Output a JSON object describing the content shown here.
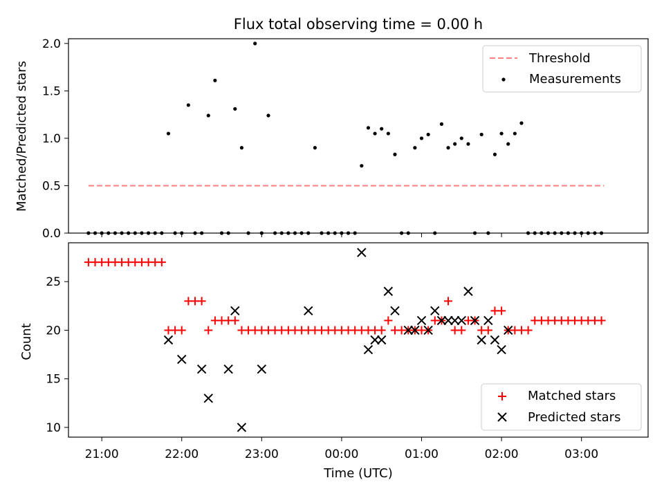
{
  "chart_data": [
    {
      "type": "scatter",
      "title": "Flux total observing time = 0.00 h",
      "xlabel": "",
      "ylabel": "Matched/Predicted stars",
      "yticks": [
        "0.0",
        "0.5",
        "1.0",
        "1.5",
        "2.0"
      ],
      "ylim": [
        0,
        2.05
      ],
      "legend": {
        "position": "top-right",
        "entries": [
          "Threshold",
          "Measurements"
        ]
      },
      "threshold": {
        "name": "Threshold",
        "y": 0.5,
        "x_start": "20:50",
        "x_end": "03:17",
        "color": "#ff7f7f",
        "style": "dashed"
      },
      "series": [
        {
          "name": "Measurements",
          "color": "#000000",
          "x": [
            "20:50",
            "20:55",
            "21:00",
            "21:05",
            "21:10",
            "21:15",
            "21:20",
            "21:25",
            "21:30",
            "21:35",
            "21:40",
            "21:45",
            "21:50",
            "21:55",
            "22:00",
            "22:05",
            "22:10",
            "22:15",
            "22:20",
            "22:25",
            "22:30",
            "22:35",
            "22:40",
            "22:45",
            "22:50",
            "22:55",
            "23:00",
            "23:05",
            "23:10",
            "23:15",
            "23:20",
            "23:25",
            "23:30",
            "23:35",
            "23:40",
            "23:45",
            "23:50",
            "23:55",
            "00:00",
            "00:05",
            "00:10",
            "00:15",
            "00:20",
            "00:25",
            "00:30",
            "00:35",
            "00:40",
            "00:45",
            "00:50",
            "00:55",
            "01:00",
            "01:05",
            "01:10",
            "01:15",
            "01:20",
            "01:25",
            "01:30",
            "01:35",
            "01:40",
            "01:45",
            "01:50",
            "01:55",
            "02:00",
            "02:05",
            "02:10",
            "02:15",
            "02:20",
            "02:25",
            "02:30",
            "02:35",
            "02:40",
            "02:45",
            "02:50",
            "02:55",
            "03:00",
            "03:05",
            "03:10",
            "03:15"
          ],
          "y": [
            0,
            0,
            0,
            0,
            0,
            0,
            0,
            0,
            0,
            0,
            0,
            0,
            1.05,
            0,
            0,
            1.35,
            0,
            0,
            1.24,
            1.61,
            0,
            0,
            1.31,
            0.9,
            0,
            2.0,
            0,
            1.24,
            0,
            0,
            0,
            0,
            0,
            0,
            0.9,
            0,
            0,
            0,
            0,
            0,
            0,
            0.71,
            1.11,
            1.05,
            1.1,
            1.05,
            0.83,
            0,
            0,
            0.9,
            1.0,
            1.04,
            0,
            1.15,
            0.9,
            0.94,
            1.0,
            0.94,
            0,
            1.04,
            0,
            0.83,
            1.05,
            0.94,
            1.05,
            1.16,
            0,
            0,
            0,
            0,
            0,
            0,
            0,
            0,
            0,
            0,
            0,
            0
          ]
        }
      ]
    },
    {
      "type": "scatter",
      "xlabel": "Time (UTC)",
      "ylabel": "Count",
      "yticks": [
        "10",
        "15",
        "20",
        "25"
      ],
      "ylim": [
        9,
        29
      ],
      "xticks": [
        "21:00",
        "22:00",
        "23:00",
        "00:00",
        "01:00",
        "02:00",
        "03:00"
      ],
      "xlim": [
        "20:35",
        "03:50"
      ],
      "legend": {
        "position": "bottom-right",
        "entries": [
          "Matched stars",
          "Predicted stars"
        ]
      },
      "series": [
        {
          "name": "Matched stars",
          "color": "#ff0000",
          "marker": "plus",
          "x": [
            "20:50",
            "20:55",
            "21:00",
            "21:05",
            "21:10",
            "21:15",
            "21:20",
            "21:25",
            "21:30",
            "21:35",
            "21:40",
            "21:45",
            "21:50",
            "21:55",
            "22:00",
            "22:05",
            "22:10",
            "22:15",
            "22:20",
            "22:25",
            "22:30",
            "22:35",
            "22:40",
            "22:45",
            "22:50",
            "22:55",
            "23:00",
            "23:05",
            "23:10",
            "23:15",
            "23:20",
            "23:25",
            "23:30",
            "23:35",
            "23:40",
            "23:45",
            "23:50",
            "23:55",
            "00:00",
            "00:05",
            "00:10",
            "00:15",
            "00:20",
            "00:25",
            "00:30",
            "00:35",
            "00:40",
            "00:45",
            "00:50",
            "00:55",
            "01:00",
            "01:05",
            "01:10",
            "01:15",
            "01:20",
            "01:25",
            "01:30",
            "01:35",
            "01:40",
            "01:45",
            "01:50",
            "01:55",
            "02:00",
            "02:05",
            "02:10",
            "02:15",
            "02:20",
            "02:25",
            "02:30",
            "02:35",
            "02:40",
            "02:45",
            "02:50",
            "02:55",
            "03:00",
            "03:05",
            "03:10",
            "03:15"
          ],
          "y": [
            27,
            27,
            27,
            27,
            27,
            27,
            27,
            27,
            27,
            27,
            27,
            27,
            20,
            20,
            20,
            23,
            23,
            23,
            20,
            21,
            21,
            21,
            21,
            20,
            20,
            20,
            20,
            20,
            20,
            20,
            20,
            20,
            20,
            20,
            20,
            20,
            20,
            20,
            20,
            20,
            20,
            20,
            20,
            20,
            20,
            21,
            20,
            20,
            20,
            20,
            20,
            20,
            21,
            21,
            23,
            20,
            20,
            21,
            21,
            20,
            20,
            22,
            22,
            20,
            20,
            20,
            20,
            21,
            21,
            21,
            21,
            21,
            21,
            21,
            21,
            21,
            21,
            21
          ]
        },
        {
          "name": "Predicted stars",
          "color": "#000000",
          "marker": "x",
          "x": [
            "21:50",
            "22:00",
            "22:15",
            "22:20",
            "22:35",
            "22:40",
            "22:45",
            "23:00",
            "23:35",
            "00:15",
            "00:20",
            "00:25",
            "00:30",
            "00:35",
            "00:40",
            "00:50",
            "00:55",
            "01:00",
            "01:05",
            "01:10",
            "01:15",
            "01:20",
            "01:25",
            "01:30",
            "01:35",
            "01:40",
            "01:45",
            "01:50",
            "01:55",
            "02:00",
            "02:05"
          ],
          "y": [
            19,
            17,
            16,
            13,
            16,
            22,
            10,
            16,
            22,
            28,
            18,
            19,
            19,
            24,
            22,
            20,
            20,
            21,
            20,
            22,
            21,
            21,
            21,
            21,
            24,
            21,
            19,
            21,
            19,
            18,
            20
          ]
        }
      ]
    }
  ]
}
